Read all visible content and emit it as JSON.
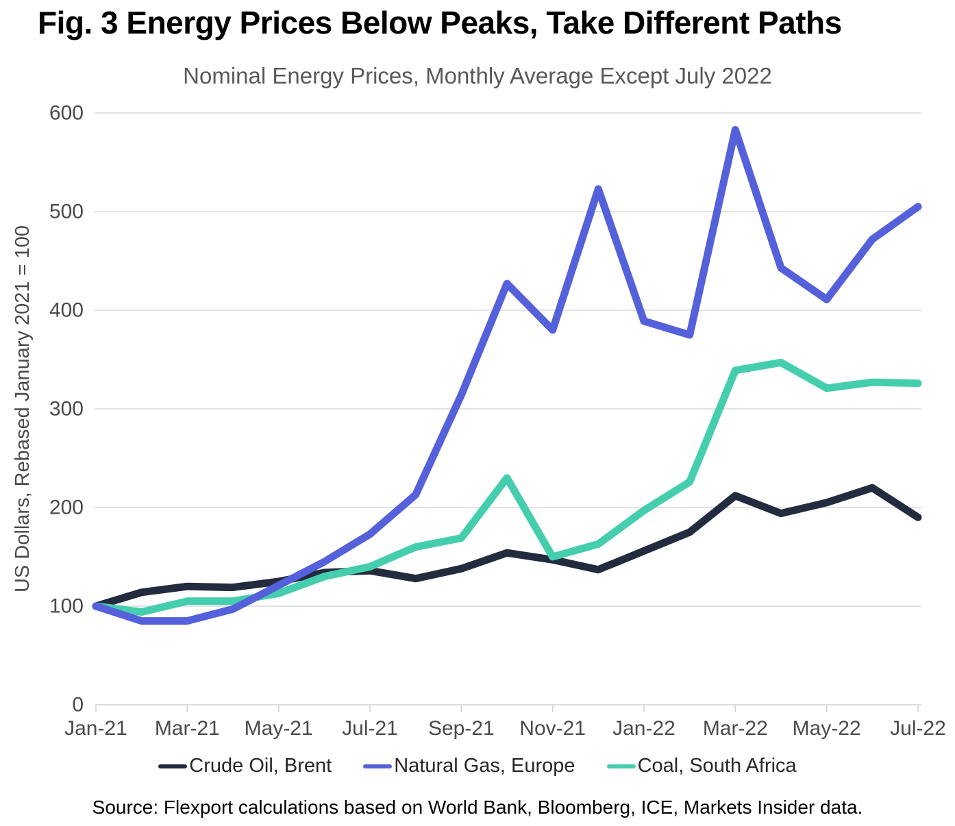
{
  "header": {
    "title": "Fig. 3 Energy Prices Below Peaks, Take Different Paths",
    "subtitle": "Nominal Energy Prices, Monthly Average Except July 2022"
  },
  "chart_data": {
    "type": "line",
    "title": "Fig. 3 Energy Prices Below Peaks, Take Different Paths",
    "subtitle": "Nominal Energy Prices, Monthly Average Except July 2022",
    "xlabel": "",
    "ylabel": "US Dollars, Rebased January 2021 = 100",
    "ylim": [
      0,
      600
    ],
    "y_ticks": [
      0,
      100,
      200,
      300,
      400,
      500,
      600
    ],
    "grid": "horizontal",
    "legend_position": "bottom",
    "categories": [
      "Jan-21",
      "Feb-21",
      "Mar-21",
      "Apr-21",
      "May-21",
      "Jun-21",
      "Jul-21",
      "Aug-21",
      "Sep-21",
      "Oct-21",
      "Nov-21",
      "Dec-21",
      "Jan-22",
      "Feb-22",
      "Mar-22",
      "Apr-22",
      "May-22",
      "Jun-22",
      "Jul-22"
    ],
    "x_tick_labels": [
      "Jan-21",
      "Mar-21",
      "May-21",
      "Jul-21",
      "Sep-21",
      "Nov-21",
      "Jan-22",
      "Mar-22",
      "May-22",
      "Jul-22"
    ],
    "series": [
      {
        "name": "Crude Oil, Brent",
        "color": "#232C3E",
        "values": [
          100,
          114,
          120,
          119,
          125,
          134,
          136,
          128,
          138,
          154,
          147,
          137,
          156,
          175,
          212,
          194,
          205,
          220,
          190
        ]
      },
      {
        "name": "Natural Gas, Europe",
        "color": "#5560DB",
        "values": [
          100,
          85,
          85,
          97,
          121,
          145,
          173,
          213,
          314,
          427,
          380,
          523,
          389,
          375,
          583,
          443,
          411,
          472,
          505
        ]
      },
      {
        "name": "Coal, South Africa",
        "color": "#45CEAE",
        "values": [
          100,
          94,
          105,
          105,
          113,
          130,
          140,
          160,
          169,
          230,
          150,
          163,
          197,
          226,
          339,
          347,
          321,
          327,
          326
        ]
      }
    ]
  },
  "footer": {
    "source": "Source: Flexport calculations based on World Bank, Bloomberg, ICE, Markets Insider data."
  },
  "colors": {
    "gridline": "#D9D9D9",
    "axis_line": "#CFCFCF",
    "tick_label": "#4A4A4A",
    "subtitle_text": "#595959",
    "legend_text": "#262626"
  }
}
